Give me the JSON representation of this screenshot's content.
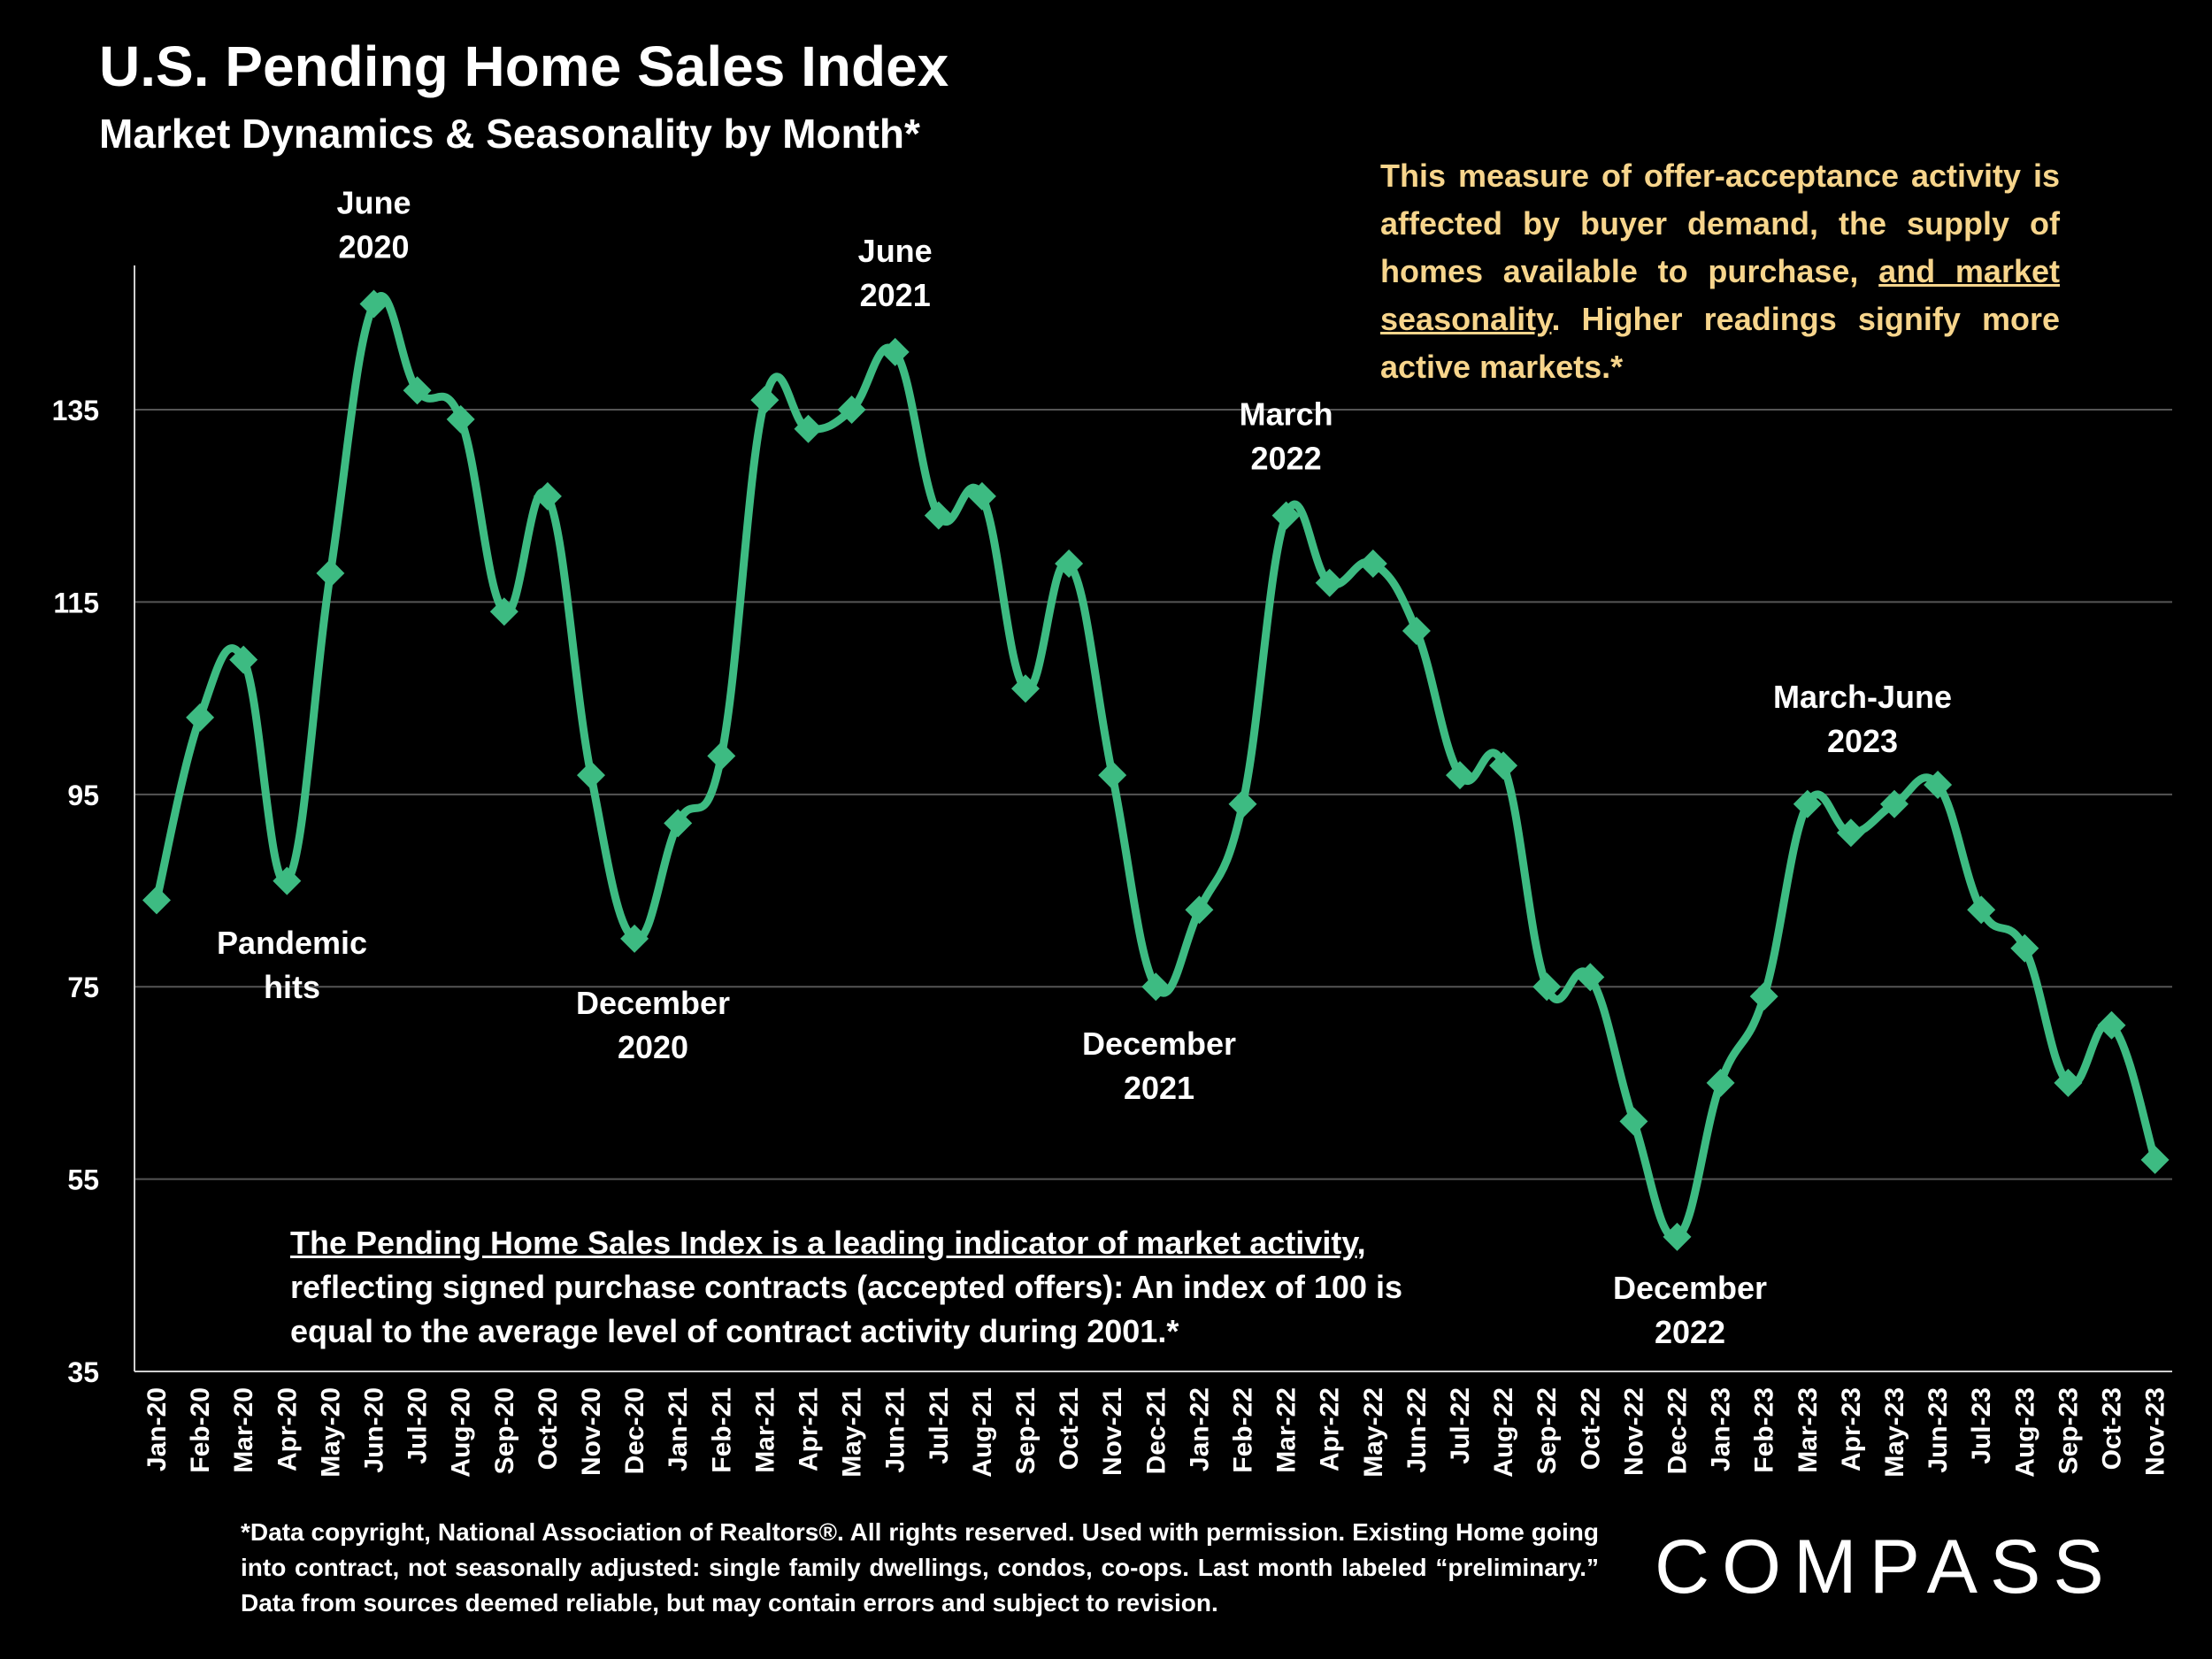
{
  "title": "U.S. Pending Home Sales Index",
  "subtitle": "Market Dynamics & Seasonality by Month*",
  "note_top": {
    "part1": "This measure of offer-acceptance activity is affected by buyer demand, the supply of homes available to purchase, ",
    "underlined": "and market seasonality",
    "part2": ". Higher readings signify more active markets.*"
  },
  "note_bottom": {
    "underlined": "The Pending Home Sales Index is a leading indicator of market activity",
    "rest": ", reflecting signed purchase contracts (accepted offers): An index of 100 is equal to the average level of contract activity during 2001.*"
  },
  "footnote": "*Data copyright, National Association of Realtors®. All rights reserved. Used with permission. Existing Home going into contract, not seasonally adjusted:  single family dwellings, condos, co-ops. Last month labeled “preliminary.” Data from sources deemed reliable, but may contain errors and subject to revision.",
  "logo": "COMPASS",
  "colors": {
    "line": "#3dbb82",
    "grid": "#555555",
    "note_top": "#f7d58c",
    "background": "#000000"
  },
  "chart_data": {
    "type": "line",
    "title": "U.S. Pending Home Sales Index",
    "xlabel": "",
    "ylabel": "",
    "ylim": [
      35,
      150
    ],
    "yticks": [
      35,
      55,
      75,
      95,
      115,
      135
    ],
    "grid": true,
    "categories": [
      "Jan-20",
      "Feb-20",
      "Mar-20",
      "Apr-20",
      "May-20",
      "Jun-20",
      "Jul-20",
      "Aug-20",
      "Sep-20",
      "Oct-20",
      "Nov-20",
      "Dec-20",
      "Jan-21",
      "Feb-21",
      "Mar-21",
      "Apr-21",
      "May-21",
      "Jun-21",
      "Jul-21",
      "Aug-21",
      "Sep-21",
      "Oct-21",
      "Nov-21",
      "Dec-21",
      "Jan-22",
      "Feb-22",
      "Mar-22",
      "Apr-22",
      "May-22",
      "Jun-22",
      "Jul-22",
      "Aug-22",
      "Sep-22",
      "Oct-22",
      "Nov-22",
      "Dec-22",
      "Jan-23",
      "Feb-23",
      "Mar-23",
      "Apr-23",
      "May-23",
      "Jun-23",
      "Jul-23",
      "Aug-23",
      "Sep-23",
      "Oct-23",
      "Nov-23"
    ],
    "series": [
      {
        "values": [
          84,
          103,
          109,
          86,
          118,
          146,
          137,
          134,
          114,
          126,
          97,
          80,
          92,
          99,
          136,
          133,
          135,
          141,
          124,
          126,
          106,
          119,
          97,
          75,
          83,
          94,
          124,
          117,
          119,
          112,
          97,
          98,
          75,
          76,
          61,
          49,
          65,
          74,
          94,
          91,
          94,
          96,
          83,
          79,
          65,
          71,
          57
        ]
      }
    ],
    "annotations": [
      {
        "lines": [
          "June",
          "2020"
        ],
        "x": "Jun-20",
        "position": "above"
      },
      {
        "lines": [
          "Pandemic",
          "hits"
        ],
        "x": "Apr-20",
        "position": "below"
      },
      {
        "lines": [
          "December",
          "2020"
        ],
        "x": "Dec-20",
        "position": "below"
      },
      {
        "lines": [
          "June",
          "2021"
        ],
        "x": "Jun-21",
        "position": "above"
      },
      {
        "lines": [
          "December",
          "2021"
        ],
        "x": "Dec-21",
        "position": "below"
      },
      {
        "lines": [
          "March",
          "2022"
        ],
        "x": "Mar-22",
        "position": "above"
      },
      {
        "lines": [
          "December",
          "2022"
        ],
        "x": "Dec-22",
        "position": "below"
      },
      {
        "lines": [
          "March-June",
          "2023"
        ],
        "x": "Apr-23",
        "position": "above"
      }
    ]
  }
}
